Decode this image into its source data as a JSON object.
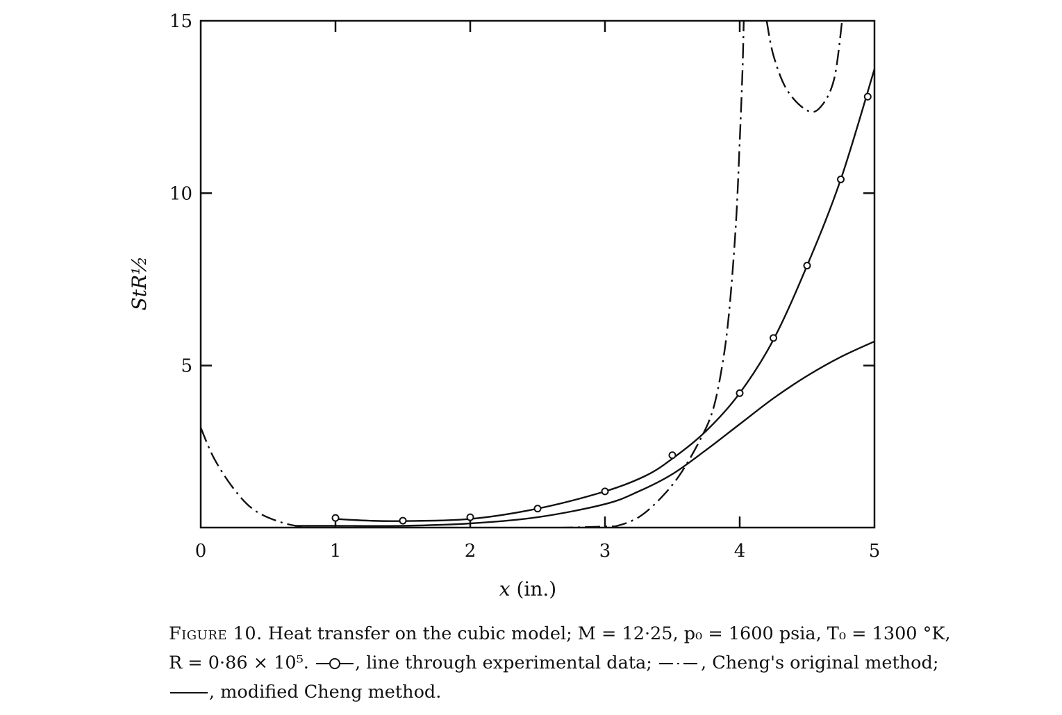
{
  "chart_data": {
    "type": "line",
    "xlabel": "x (in.)",
    "ylabel": "StR½",
    "xlim": [
      0,
      5
    ],
    "ylim": [
      0.3,
      15
    ],
    "x_ticks": [
      "0",
      "1",
      "2",
      "3",
      "4",
      "5"
    ],
    "y_ticks": [
      "5",
      "10",
      "15"
    ],
    "grid": false,
    "series": [
      {
        "name": "line through experimental data",
        "style": "solid-with-circles",
        "points": [
          [
            1.0,
            0.58
          ],
          [
            1.5,
            0.5
          ],
          [
            2.0,
            0.6
          ],
          [
            2.5,
            0.85
          ],
          [
            3.0,
            1.35
          ],
          [
            3.5,
            2.4
          ],
          [
            4.0,
            4.2
          ],
          [
            4.25,
            5.8
          ],
          [
            4.5,
            7.9
          ],
          [
            4.75,
            10.4
          ],
          [
            4.95,
            12.8
          ]
        ],
        "curve": [
          [
            1.0,
            0.55
          ],
          [
            1.25,
            0.5
          ],
          [
            1.5,
            0.49
          ],
          [
            2.0,
            0.55
          ],
          [
            2.5,
            0.85
          ],
          [
            3.0,
            1.35
          ],
          [
            3.3,
            1.8
          ],
          [
            3.5,
            2.3
          ],
          [
            3.75,
            3.1
          ],
          [
            4.0,
            4.2
          ],
          [
            4.25,
            5.75
          ],
          [
            4.5,
            7.9
          ],
          [
            4.75,
            10.4
          ],
          [
            5.0,
            13.6
          ]
        ]
      },
      {
        "name": "Cheng's original method",
        "style": "dash-dot",
        "segments": [
          [
            [
              0.0,
              3.2
            ],
            [
              0.1,
              2.3
            ],
            [
              0.25,
              1.4
            ],
            [
              0.4,
              0.8
            ],
            [
              0.6,
              0.45
            ],
            [
              0.8,
              0.3
            ],
            [
              1.0,
              0.28
            ],
            [
              1.5,
              0.25
            ],
            [
              2.0,
              0.25
            ],
            [
              2.5,
              0.28
            ],
            [
              3.0,
              0.33
            ],
            [
              3.1,
              0.36
            ],
            [
              3.25,
              0.6
            ],
            [
              3.4,
              1.1
            ],
            [
              3.55,
              1.8
            ],
            [
              3.7,
              2.8
            ],
            [
              3.8,
              3.7
            ],
            [
              3.87,
              5.0
            ],
            [
              3.92,
              6.5
            ],
            [
              3.97,
              9.0
            ],
            [
              4.0,
              11.5
            ],
            [
              4.02,
              13.5
            ],
            [
              4.03,
              15.0
            ]
          ],
          [
            [
              4.2,
              15.0
            ],
            [
              4.25,
              14.0
            ],
            [
              4.35,
              13.0
            ],
            [
              4.5,
              12.4
            ],
            [
              4.6,
              12.5
            ],
            [
              4.7,
              13.3
            ],
            [
              4.76,
              15.0
            ]
          ]
        ]
      },
      {
        "name": "modified Cheng method",
        "style": "solid",
        "curve": [
          [
            0.7,
            0.35
          ],
          [
            1.0,
            0.35
          ],
          [
            1.5,
            0.35
          ],
          [
            2.0,
            0.42
          ],
          [
            2.5,
            0.6
          ],
          [
            3.0,
            0.98
          ],
          [
            3.25,
            1.35
          ],
          [
            3.5,
            1.85
          ],
          [
            3.75,
            2.55
          ],
          [
            4.0,
            3.3
          ],
          [
            4.25,
            4.05
          ],
          [
            4.5,
            4.7
          ],
          [
            4.75,
            5.25
          ],
          [
            5.0,
            5.7
          ]
        ]
      }
    ]
  },
  "caption": {
    "fig_label": "Figure 10.",
    "line1": "Heat transfer on the cubic model; M = 12·25, p₀ = 1600 psia, T₀ = 1300 °K,",
    "line2_pre": "R = 0·86 × 10⁵.",
    "line2_exp": ", line through experimental data;",
    "line2_cheng": ", Cheng's original method;",
    "line3": ", modified Cheng method."
  }
}
